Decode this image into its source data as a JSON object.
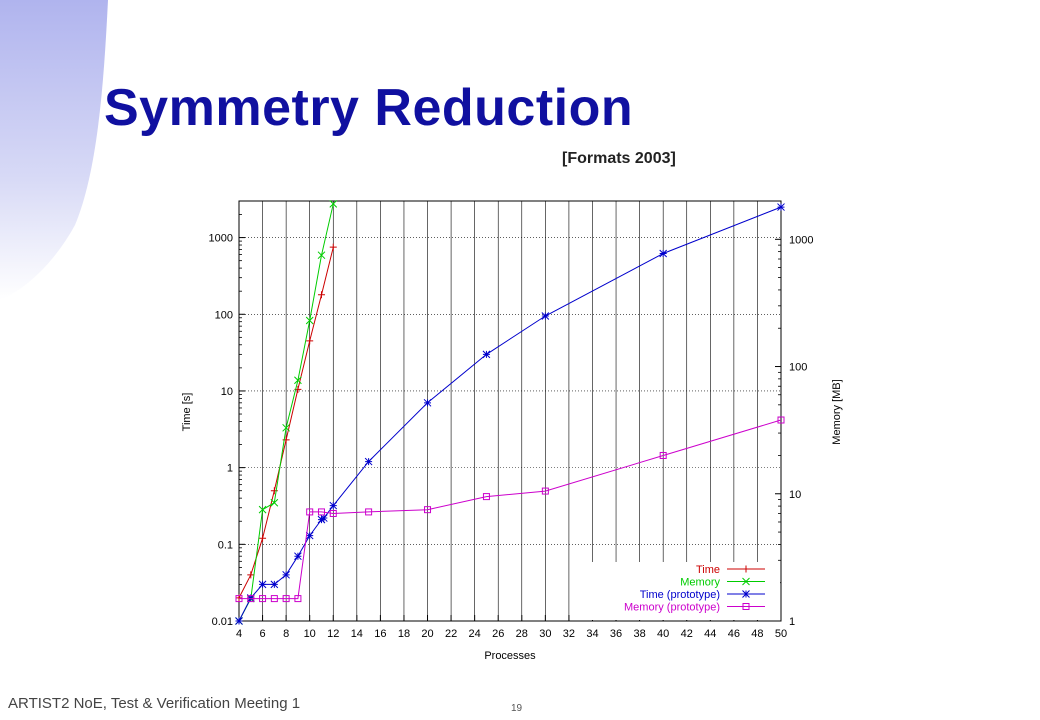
{
  "slide": {
    "title": "Symmetry Reduction",
    "subtitle": "[Formats 2003]",
    "footer": "ARTIST2 NoE, Test & Verification Meeting 1",
    "page_number": "19"
  },
  "colors": {
    "title": "#1010a0",
    "decoration": "#b8bcf0",
    "time": "#cc0000",
    "memory": "#00cc00",
    "time_prototype": "#0000cc",
    "memory_prototype": "#cc00cc"
  },
  "chart_data": {
    "type": "line",
    "xlabel": "Processes",
    "ylabel_left": "Time [s]",
    "ylabel_right": "Memory [MB]",
    "xlim": [
      4,
      50
    ],
    "x_ticks": [
      4,
      6,
      8,
      10,
      12,
      14,
      16,
      18,
      20,
      22,
      24,
      26,
      28,
      30,
      32,
      34,
      36,
      38,
      40,
      42,
      44,
      46,
      48,
      50
    ],
    "ylim_left": [
      0.01,
      3000
    ],
    "yscale_left": "log",
    "y_ticks_left": [
      {
        "value": 0.01,
        "label": "0.01"
      },
      {
        "value": 0.1,
        "label": "0.1"
      },
      {
        "value": 1,
        "label": "1"
      },
      {
        "value": 10,
        "label": "10"
      },
      {
        "value": 100,
        "label": "100"
      },
      {
        "value": 1000,
        "label": "1000"
      }
    ],
    "ylim_right": [
      1,
      2000
    ],
    "yscale_right": "log",
    "y_ticks_right": [
      {
        "value": 1,
        "label": "1"
      },
      {
        "value": 10,
        "label": "10"
      },
      {
        "value": 100,
        "label": "100"
      },
      {
        "value": 1000,
        "label": "1000"
      }
    ],
    "grid": true,
    "legend_position": "bottom-right",
    "series": [
      {
        "name": "Time",
        "axis": "left",
        "marker": "plus",
        "color_key": "time",
        "x": [
          4,
          5,
          6,
          7,
          8,
          9,
          10,
          11,
          12
        ],
        "y": [
          0.02,
          0.04,
          0.12,
          0.5,
          2.3,
          10.5,
          45,
          180,
          750
        ]
      },
      {
        "name": "Memory",
        "axis": "right",
        "marker": "x",
        "color_key": "memory",
        "x": [
          4,
          5,
          6,
          7,
          8,
          9,
          10,
          11,
          12
        ],
        "y": [
          1,
          1.5,
          7.5,
          8.5,
          33,
          78,
          230,
          750,
          1900
        ]
      },
      {
        "name": "Time (prototype)",
        "axis": "left",
        "marker": "star",
        "color_key": "time_prototype",
        "x": [
          4,
          5,
          6,
          7,
          8,
          9,
          10,
          11,
          11.2,
          12,
          15,
          20,
          25,
          30,
          40,
          50
        ],
        "y": [
          0.01,
          0.02,
          0.03,
          0.03,
          0.04,
          0.07,
          0.13,
          0.21,
          0.22,
          0.32,
          1.2,
          7,
          30,
          95,
          620,
          2500
        ]
      },
      {
        "name": "Memory (prototype)",
        "axis": "right",
        "marker": "square",
        "color_key": "memory_prototype",
        "x": [
          4,
          5,
          6,
          7,
          8,
          9,
          10,
          11,
          12,
          15,
          20,
          25,
          30,
          40,
          50
        ],
        "y": [
          1.5,
          1.5,
          1.5,
          1.5,
          1.5,
          1.5,
          7.2,
          7.2,
          7,
          7.2,
          7.5,
          9.5,
          10.5,
          20,
          38
        ]
      }
    ]
  }
}
